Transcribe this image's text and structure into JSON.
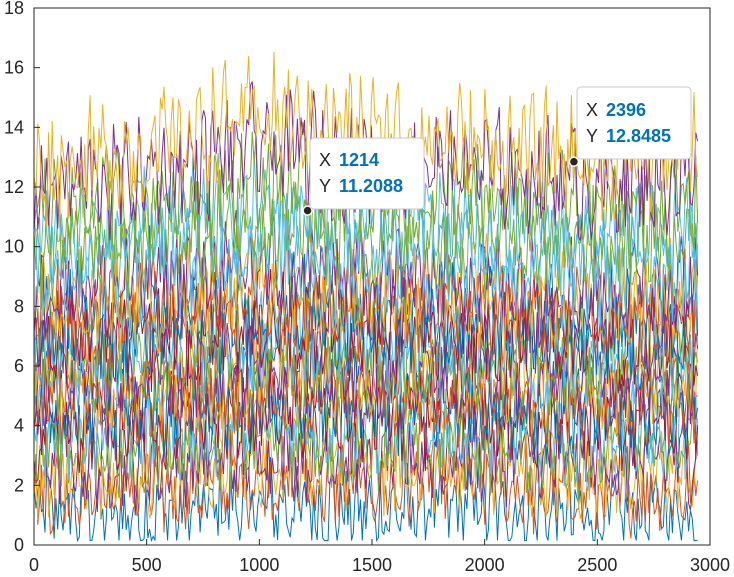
{
  "chart_data": {
    "type": "line",
    "title": "",
    "xlabel": "",
    "ylabel": "",
    "xlim": [
      0,
      3000
    ],
    "ylim": [
      0,
      18
    ],
    "x_ticks": [
      0,
      500,
      1000,
      1500,
      2000,
      2500,
      3000
    ],
    "y_ticks": [
      0,
      2,
      4,
      6,
      8,
      10,
      12,
      14,
      16,
      18
    ],
    "grid": false,
    "legend": "none",
    "n_points": 2950,
    "series_colors": [
      "#0072bd",
      "#d95319",
      "#edb120",
      "#7e2f8e",
      "#77ac30",
      "#4dbeee",
      "#a2142f"
    ],
    "series": [
      {
        "color": "#0072bd",
        "values": [
          1.2,
          1.0,
          1.4,
          1.1,
          1.3,
          0.9,
          1.2
        ]
      },
      {
        "color": "#d95319",
        "values": [
          2.0,
          1.8,
          2.3,
          2.0,
          2.1,
          1.7,
          2.0
        ]
      },
      {
        "color": "#edb120",
        "values": [
          2.6,
          2.5,
          2.9,
          2.7,
          2.6,
          2.4,
          2.6
        ]
      },
      {
        "color": "#7e2f8e",
        "values": [
          3.0,
          2.8,
          3.2,
          3.0,
          3.1,
          2.8,
          3.0
        ]
      },
      {
        "color": "#77ac30",
        "values": [
          3.4,
          3.3,
          3.7,
          3.5,
          3.5,
          3.2,
          3.4
        ]
      },
      {
        "color": "#4dbeee",
        "values": [
          3.9,
          3.8,
          4.2,
          4.0,
          4.0,
          3.7,
          3.9
        ]
      },
      {
        "color": "#a2142f",
        "values": [
          4.3,
          4.2,
          4.6,
          4.4,
          4.4,
          4.1,
          4.3
        ]
      },
      {
        "color": "#0072bd",
        "values": [
          4.7,
          4.6,
          5.0,
          4.8,
          4.8,
          4.5,
          4.7
        ]
      },
      {
        "color": "#d95319",
        "values": [
          5.1,
          5.0,
          5.4,
          5.2,
          5.2,
          4.9,
          5.1
        ]
      },
      {
        "color": "#edb120",
        "values": [
          5.5,
          5.4,
          5.8,
          5.6,
          5.6,
          5.3,
          5.5
        ]
      },
      {
        "color": "#7e2f8e",
        "values": [
          5.9,
          5.8,
          6.2,
          6.0,
          6.0,
          5.7,
          5.9
        ]
      },
      {
        "color": "#77ac30",
        "values": [
          6.3,
          6.2,
          6.6,
          6.4,
          6.4,
          6.1,
          6.3
        ]
      },
      {
        "color": "#4dbeee",
        "values": [
          6.7,
          6.6,
          7.0,
          6.8,
          6.8,
          6.5,
          6.7
        ]
      },
      {
        "color": "#a2142f",
        "values": [
          7.1,
          7.0,
          7.4,
          7.2,
          7.2,
          6.9,
          7.1
        ]
      },
      {
        "color": "#0072bd",
        "values": [
          7.5,
          7.4,
          7.8,
          7.6,
          7.6,
          7.3,
          7.5
        ]
      },
      {
        "color": "#d95319",
        "values": [
          7.9,
          7.8,
          8.3,
          8.0,
          8.0,
          7.7,
          7.9
        ]
      },
      {
        "color": "#edb120",
        "values": [
          8.3,
          8.3,
          8.8,
          8.5,
          8.4,
          8.1,
          8.3
        ]
      },
      {
        "color": "#7e2f8e",
        "values": [
          8.8,
          8.8,
          9.3,
          9.0,
          8.9,
          8.5,
          8.8
        ]
      },
      {
        "color": "#4dbeee",
        "values": [
          9.3,
          9.4,
          10.0,
          9.7,
          9.5,
          9.1,
          9.3
        ]
      },
      {
        "color": "#77ac30",
        "values": [
          10.0,
          10.2,
          10.8,
          10.5,
          10.3,
          9.9,
          10.1
        ]
      },
      {
        "color": "#4dbeee",
        "values": [
          10.4,
          10.6,
          11.2,
          10.9,
          10.7,
          10.3,
          10.5
        ]
      },
      {
        "color": "#77ac30",
        "values": [
          11.2,
          11.5,
          12.2,
          11.8,
          11.6,
          11.2,
          11.4
        ]
      },
      {
        "color": "#7e2f8e",
        "values": [
          12.0,
          12.4,
          13.4,
          12.9,
          12.6,
          12.2,
          12.4
        ]
      },
      {
        "color": "#edb120",
        "values": [
          12.6,
          13.2,
          14.4,
          13.8,
          13.4,
          13.0,
          13.3
        ]
      }
    ],
    "datatips": [
      {
        "x_label": "X",
        "x_value": "1214",
        "y_label": "Y",
        "y_value": "11.2088",
        "x": 1214,
        "y": 11.2088
      },
      {
        "x_label": "X",
        "x_value": "2396",
        "y_label": "Y",
        "y_value": "12.8485",
        "x": 2396,
        "y": 12.8485
      }
    ]
  }
}
